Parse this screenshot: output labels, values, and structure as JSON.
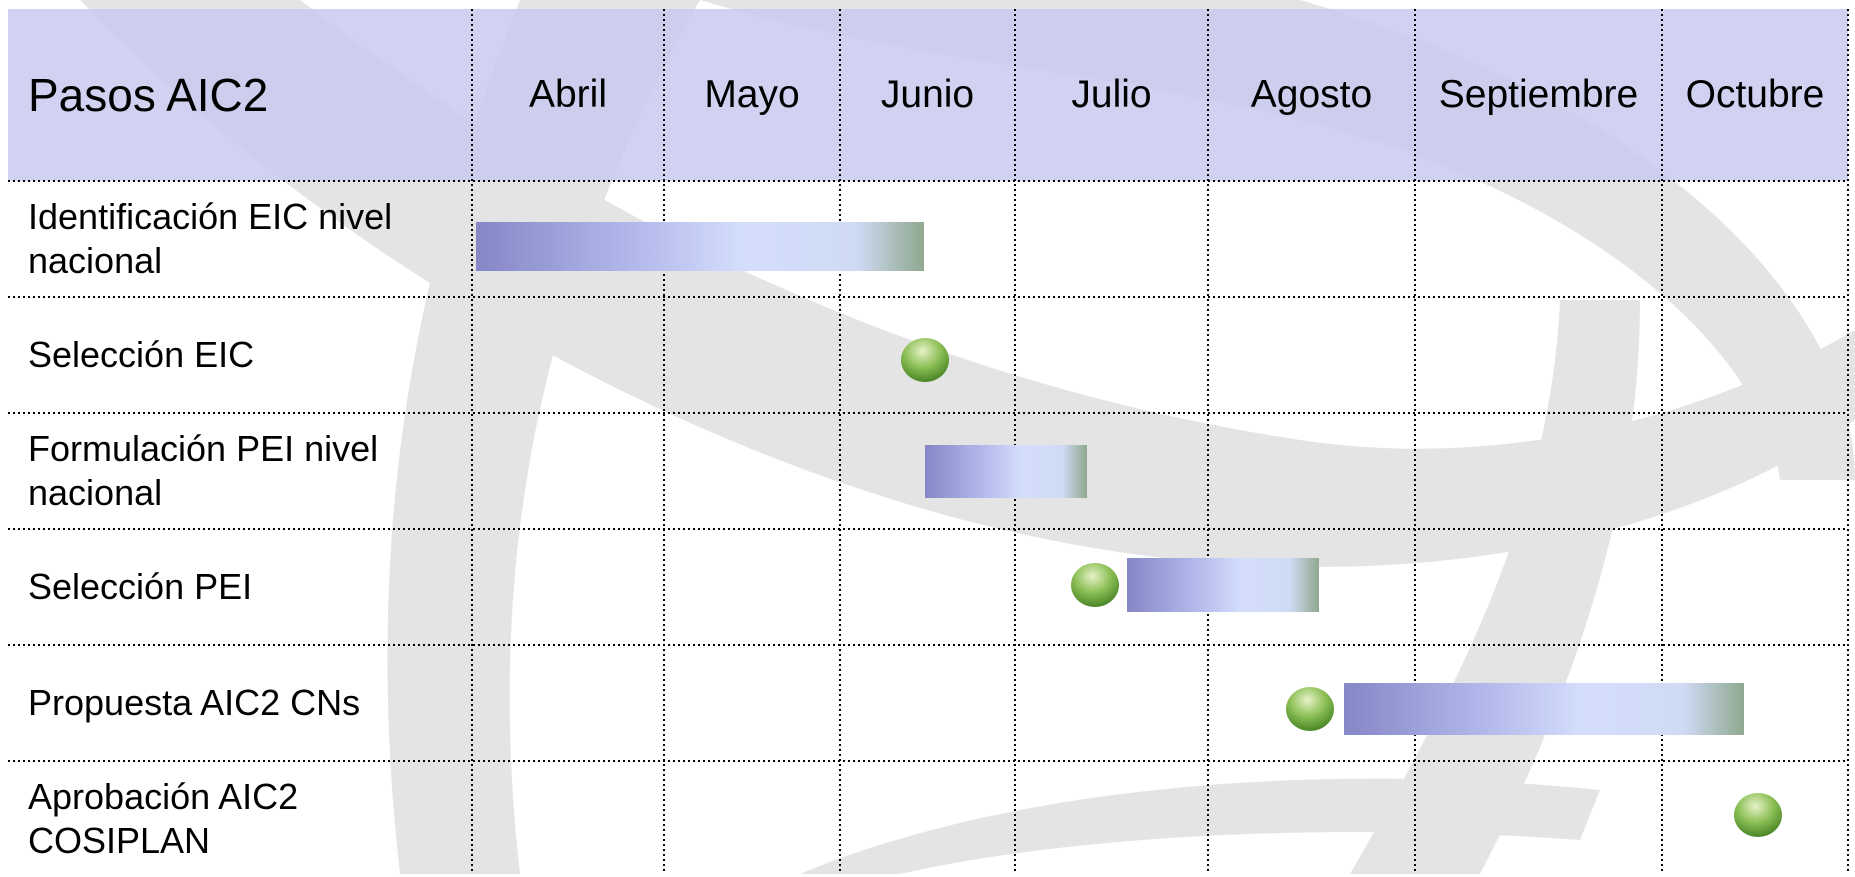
{
  "header": {
    "title": "Pasos AIC2",
    "months": [
      "Abril",
      "Mayo",
      "Junio",
      "Julio",
      "Agosto",
      "Septiembre",
      "Octubre"
    ]
  },
  "rows": [
    "Identificación EIC nivel nacional",
    "Selección EIC",
    "Formulación PEI nivel nacional",
    "Selección PEI",
    "Propuesta AIC2 CNs",
    "Aprobación AIC2 COSIPLAN"
  ]
}
